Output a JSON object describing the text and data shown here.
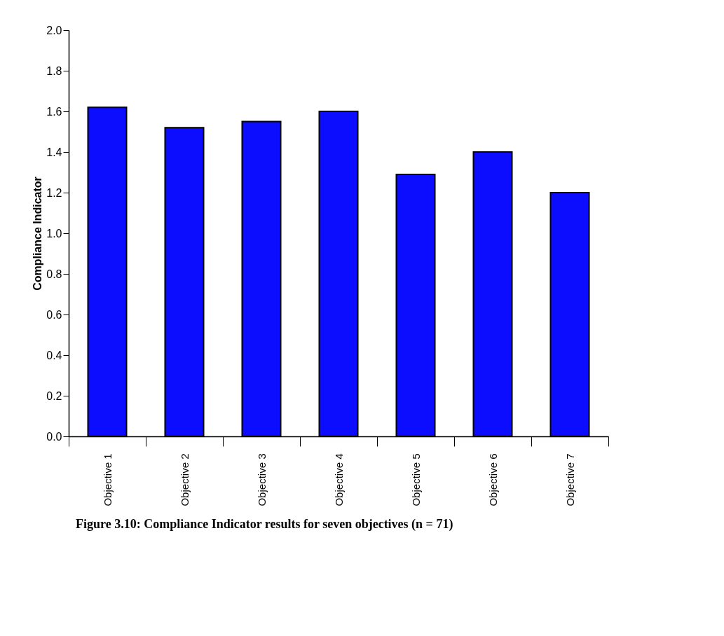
{
  "chart_data": {
    "type": "bar",
    "ylabel": "Compliance Indicator",
    "categories": [
      "Objective 1",
      "Objective 2",
      "Objective 3",
      "Objective 4",
      "Objective 5",
      "Objective 6",
      "Objective 7"
    ],
    "values": [
      1.62,
      1.52,
      1.55,
      1.6,
      1.29,
      1.4,
      1.2
    ],
    "color": "#0c0cff",
    "ylim": [
      0,
      2
    ],
    "yticks": [
      {
        "value": 0,
        "label": "0.0"
      },
      0.2,
      0.4,
      0.6,
      0.8,
      {
        "value": 1,
        "label": "1.0"
      },
      1.2,
      1.4,
      1.6,
      1.8,
      {
        "value": 2,
        "label": "2.0"
      }
    ],
    "grid": false,
    "annotations": [
      "Figure 3.10: Compliance Indicator results for seven objectives (n = 71)"
    ]
  }
}
